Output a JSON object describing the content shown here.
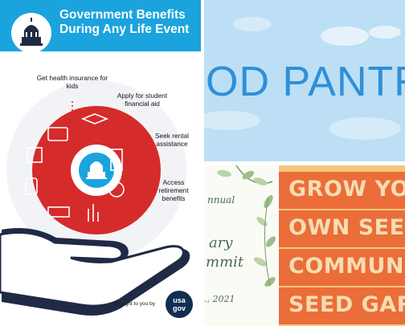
{
  "tile_benefits": {
    "title": "Government Benefits During Any Life Event",
    "annotations": {
      "health": "Get health insurance for kids",
      "student": "Apply for student financial aid",
      "rental": "Seek rental assistance",
      "retirement": "Access retirement benefits"
    },
    "brought_by": "Brought to you by",
    "logo_line1": "usa",
    "logo_line2": "gov",
    "colors": {
      "header": "#1ba3de",
      "circle": "#d32f2f",
      "hand": "#1f2a44"
    }
  },
  "tile_pantry": {
    "banner": "OD PANTR"
  },
  "tile_summit": {
    "line1": "nnual",
    "line2": "ary",
    "line3": "mmit",
    "date": "., 2021"
  },
  "tile_seed": {
    "lines": [
      "GROW YOU",
      "OWN SEED",
      "COMMUNITY",
      "SEED GARD"
    ],
    "colors": {
      "background": "#f5c77a",
      "band": "#eb6d3a",
      "text": "#f7ddb0"
    }
  }
}
